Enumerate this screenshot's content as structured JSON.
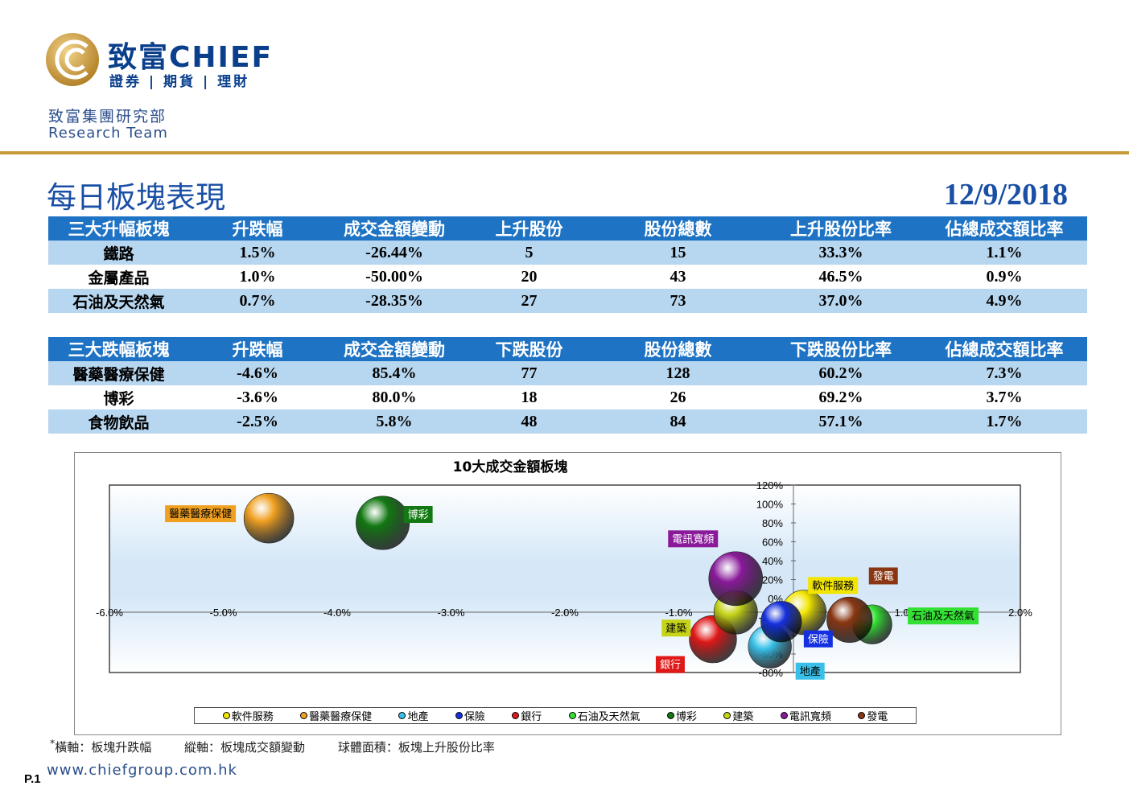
{
  "header": {
    "logo_cn": "致富CHIEF",
    "logo_sub": "證券 | 期貨 | 理財",
    "dept_cn": "致富集團研究部",
    "dept_en": "Research Team"
  },
  "title": "每日板塊表現",
  "date": "12/9/2018",
  "colors": {
    "brand_blue": "#1a4fa6",
    "header_blue": "#1e73c4",
    "row_alt": "#b7d6ef",
    "gold": "#c79a38"
  },
  "table_up": {
    "headers": [
      "三大升幅板塊",
      "升跌幅",
      "成交金額變動",
      "上升股份",
      "股份總數",
      "上升股份比率",
      "佔總成交額比率"
    ],
    "rows": [
      [
        "鐵路",
        "1.5%",
        "-26.44%",
        "5",
        "15",
        "33.3%",
        "1.1%"
      ],
      [
        "金屬產品",
        "1.0%",
        "-50.00%",
        "20",
        "43",
        "46.5%",
        "0.9%"
      ],
      [
        "石油及天然氣",
        "0.7%",
        "-28.35%",
        "27",
        "73",
        "37.0%",
        "4.9%"
      ]
    ]
  },
  "table_down": {
    "headers": [
      "三大跌幅板塊",
      "升跌幅",
      "成交金額變動",
      "下跌股份",
      "股份總數",
      "下跌股份比率",
      "佔總成交額比率"
    ],
    "rows": [
      [
        "醫藥醫療保健",
        "-4.6%",
        "85.4%",
        "77",
        "128",
        "60.2%",
        "7.3%"
      ],
      [
        "博彩",
        "-3.6%",
        "80.0%",
        "18",
        "26",
        "69.2%",
        "3.7%"
      ],
      [
        "食物飲品",
        "-2.5%",
        "5.8%",
        "48",
        "84",
        "57.1%",
        "1.7%"
      ]
    ]
  },
  "chart_data": {
    "type": "scatter",
    "title": "10大成交金額板塊",
    "xlabel": "",
    "ylabel": "",
    "xlim": [
      -6.0,
      2.0
    ],
    "ylim": [
      -80,
      120
    ],
    "x_ticks": [
      "-6.0%",
      "-5.0%",
      "-4.0%",
      "-3.0%",
      "-2.0%",
      "-1.0%",
      "0.0%",
      "1.0%",
      "2.0%"
    ],
    "y_ticks": [
      "120%",
      "100%",
      "80%",
      "60%",
      "40%",
      "20%",
      "0%",
      "-20%",
      "-40%",
      "-60%",
      "-80%"
    ],
    "legend_position": "bottom",
    "series": [
      {
        "name": "軟件服務",
        "x": 0.1,
        "y": -15,
        "size": 48,
        "color": "#f2e600"
      },
      {
        "name": "醫藥醫療保健",
        "x": -4.6,
        "y": 85,
        "size": 60,
        "color": "#f0a020"
      },
      {
        "name": "地產",
        "x": -0.2,
        "y": -52,
        "size": 45,
        "color": "#38c0e8"
      },
      {
        "name": "保險",
        "x": -0.1,
        "y": -25,
        "size": 40,
        "color": "#1530e0"
      },
      {
        "name": "銀行",
        "x": -0.7,
        "y": -44,
        "size": 54,
        "color": "#e01818"
      },
      {
        "name": "石油及天然氣",
        "x": 0.7,
        "y": -28,
        "size": 37,
        "color": "#33e033"
      },
      {
        "name": "博彩",
        "x": -3.6,
        "y": 80,
        "size": 69,
        "color": "#127812"
      },
      {
        "name": "建築",
        "x": -0.5,
        "y": -15,
        "size": 46,
        "color": "#c6d418"
      },
      {
        "name": "電訊寬頻",
        "x": -0.5,
        "y": 21,
        "size": 70,
        "color": "#8a1a9a"
      },
      {
        "name": "發電",
        "x": 0.5,
        "y": -23,
        "size": 50,
        "color": "#8a3612"
      }
    ]
  },
  "footnote": {
    "marker": "*",
    "x_axis": "橫軸：板塊升跌幅",
    "y_axis": "縱軸：板塊成交額變動",
    "size": "球體面積：板塊上升股份比率"
  },
  "footer": {
    "url": "www.chiefgroup.com.hk",
    "page": "P.1"
  }
}
